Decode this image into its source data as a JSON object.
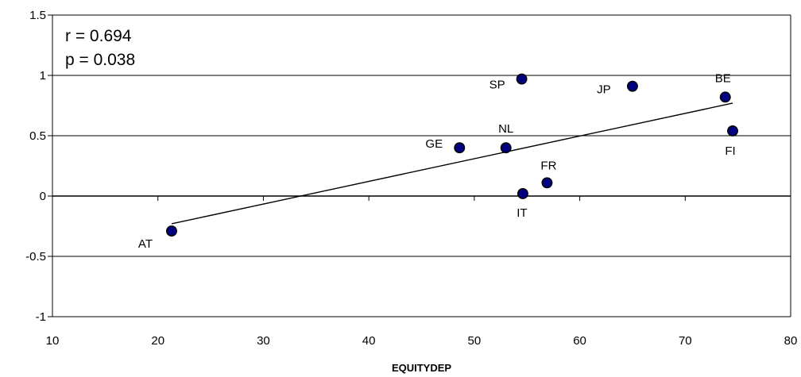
{
  "chart_data": {
    "type": "scatter",
    "title": "",
    "xlabel": "EQUITYDEP",
    "ylabel": "",
    "xlim": [
      10,
      80
    ],
    "ylim": [
      -1,
      1.5
    ],
    "x_ticks": [
      10,
      20,
      30,
      40,
      50,
      60,
      70,
      80
    ],
    "y_ticks": [
      -1,
      -0.5,
      0,
      0.5,
      1,
      1.5
    ],
    "grid": "horizontal",
    "annotations": [
      "r = 0.694",
      "p = 0.038"
    ],
    "points": [
      {
        "label": "AT",
        "x": 21.3,
        "y": -0.29
      },
      {
        "label": "GE",
        "x": 48.6,
        "y": 0.4
      },
      {
        "label": "NL",
        "x": 53.0,
        "y": 0.4
      },
      {
        "label": "SP",
        "x": 54.5,
        "y": 0.97
      },
      {
        "label": "IT",
        "x": 54.6,
        "y": 0.02
      },
      {
        "label": "FR",
        "x": 56.9,
        "y": 0.11
      },
      {
        "label": "JP",
        "x": 65.0,
        "y": 0.91
      },
      {
        "label": "BE",
        "x": 73.8,
        "y": 0.82
      },
      {
        "label": "FI",
        "x": 74.5,
        "y": 0.54
      }
    ],
    "trendline": {
      "x": [
        21.3,
        74.5
      ],
      "y": [
        -0.23,
        0.77
      ]
    }
  }
}
